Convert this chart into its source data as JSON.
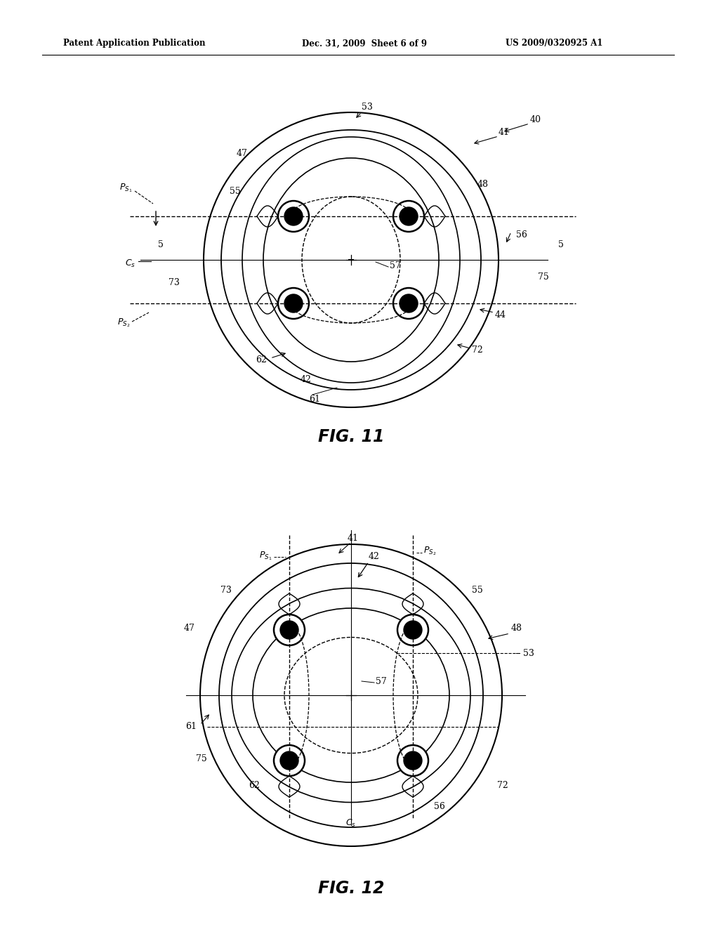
{
  "header_left": "Patent Application Publication",
  "header_mid": "Dec. 31, 2009  Sheet 6 of 9",
  "header_right": "US 2009/0320925 A1",
  "fig11_title": "FIG. 11",
  "fig12_title": "FIG. 12",
  "bg_color": "#ffffff",
  "line_color": "#000000"
}
